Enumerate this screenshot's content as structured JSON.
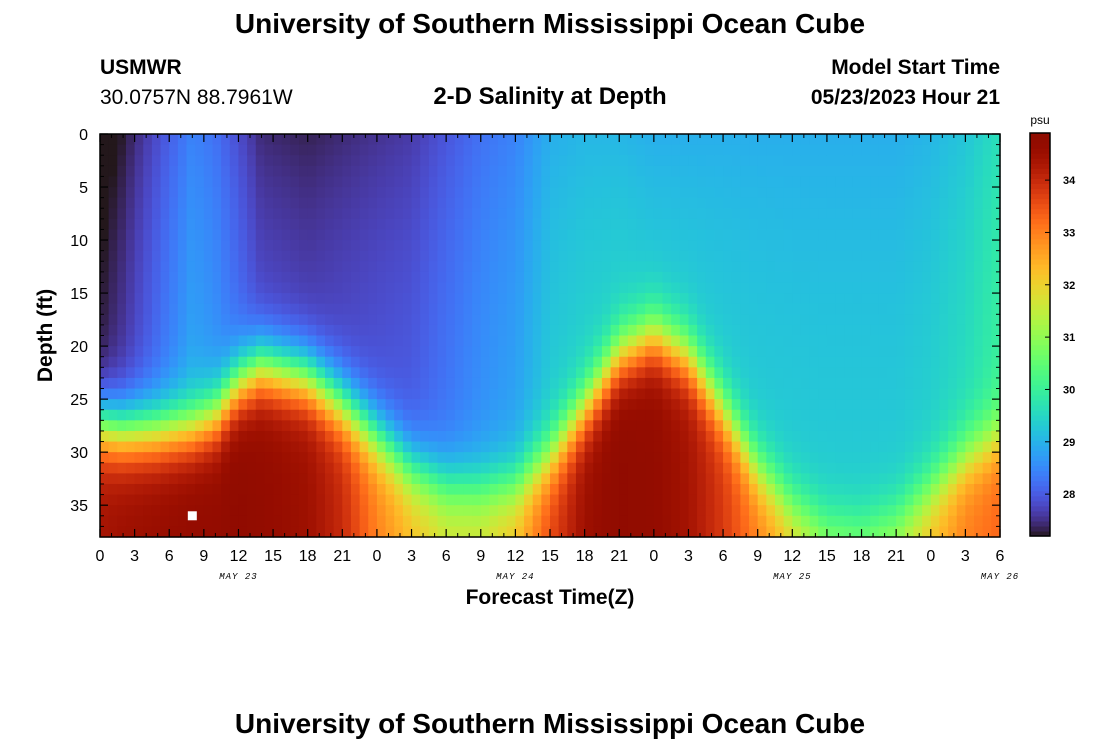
{
  "header": {
    "title": "University of Southern Mississippi Ocean Cube",
    "station": "USMWR",
    "coords": "30.0757N  88.7961W",
    "subtitle": "2-D Salinity at Depth",
    "model_start_label": "Model Start Time",
    "model_start_value": "05/23/2023 Hour 21"
  },
  "footer": {
    "title": "University of Southern Mississippi Ocean Cube"
  },
  "chart_data": {
    "type": "heatmap",
    "title": "2-D Salinity at Depth",
    "xlabel": "Forecast Time(Z)",
    "ylabel": "Depth (ft)",
    "x_tick_labels": [
      "0",
      "3",
      "6",
      "9",
      "12",
      "15",
      "18",
      "21",
      "0",
      "3",
      "6",
      "9",
      "12",
      "15",
      "18",
      "21",
      "0",
      "3",
      "6",
      "9",
      "12",
      "15",
      "18",
      "21",
      "0",
      "3",
      "6"
    ],
    "date_labels": [
      "MAY 23",
      "MAY 24",
      "MAY 25",
      "MAY 26"
    ],
    "date_label_ticks": [
      4,
      12,
      20,
      26
    ],
    "x_range_hours": [
      0,
      78
    ],
    "y_ticks": [
      0,
      5,
      10,
      15,
      20,
      25,
      30,
      35
    ],
    "ylim": [
      0,
      38
    ],
    "colorbar": {
      "unit": "psu",
      "range": [
        27.2,
        34.9
      ],
      "ticks": [
        28,
        29,
        30,
        31,
        32,
        33,
        34
      ],
      "colormap": "turbo"
    },
    "salinity_profile": {
      "note_hours": [
        0,
        2,
        5,
        8,
        10,
        12,
        14,
        18,
        21,
        24,
        27,
        30,
        33,
        36,
        39,
        42,
        45,
        48,
        51,
        54,
        57,
        60,
        63,
        66,
        69,
        72,
        75,
        78
      ],
      "surface_psu": [
        27.3,
        27.6,
        28.2,
        28.8,
        28.6,
        28.2,
        27.8,
        27.7,
        27.8,
        27.9,
        28.0,
        28.3,
        28.6,
        28.8,
        29.3,
        29.4,
        29.4,
        29.3,
        29.3,
        29.3,
        29.3,
        29.3,
        29.3,
        29.3,
        29.3,
        29.4,
        29.6,
        30.0
      ],
      "front_depth_ft": [
        27.5,
        28.0,
        28.0,
        27.6,
        26.5,
        23.5,
        22.0,
        23.0,
        25.5,
        28.5,
        31.5,
        33.0,
        33.3,
        33.0,
        30.5,
        26.0,
        21.0,
        19.0,
        21.0,
        26.0,
        31.5,
        35.0,
        36.8,
        37.0,
        36.0,
        33.5,
        30.5,
        28.5
      ],
      "deep_psu": [
        34.4,
        34.5,
        34.6,
        34.7,
        34.7,
        34.8,
        34.7,
        34.5,
        34.0,
        33.0,
        32.3,
        31.8,
        31.8,
        32.3,
        33.6,
        34.5,
        34.8,
        34.7,
        34.4,
        33.8,
        33.0,
        32.2,
        31.5,
        31.3,
        31.5,
        32.3,
        33.0,
        33.3
      ]
    },
    "marker": {
      "hour": 8,
      "depth_ft": 36
    }
  }
}
